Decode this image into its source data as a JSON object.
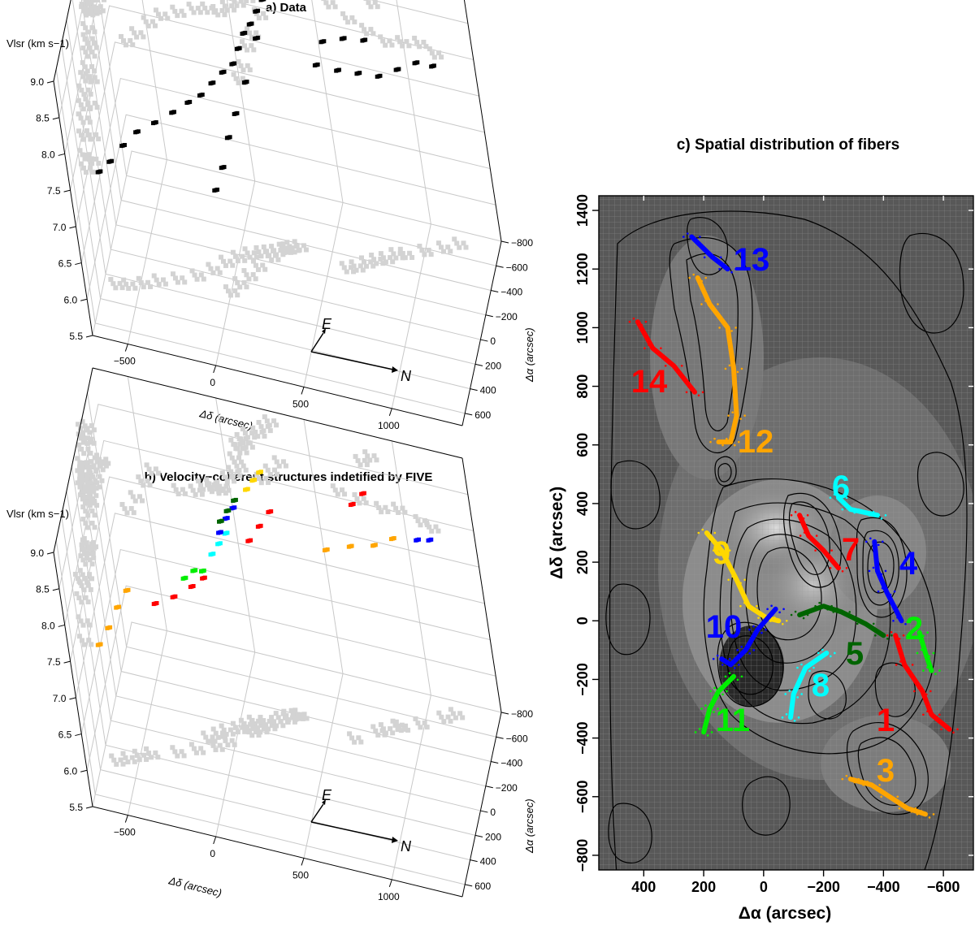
{
  "figure": {
    "panel_a_title": "a) Data",
    "panel_b_title": "b) Velocity−coherent structures indetified by FIVE",
    "panel_c_title": "c) Spatial distribution of fibers"
  },
  "chart_data": [
    {
      "type": "scatter",
      "title": "a) Data",
      "zlabel": "Vlsr (km s−1)",
      "xlabel": "Δδ (arcsec)",
      "ylabel": "Δα (arcsec)",
      "compass": {
        "E": "E",
        "N": "N"
      },
      "zlim": [
        5.5,
        9.0
      ],
      "xlim": [
        -700,
        1400
      ],
      "ylim": [
        -800,
        700
      ],
      "z_ticks": [
        "5.5",
        "6.0",
        "6.5",
        "7.0",
        "7.5",
        "8.0",
        "8.5",
        "9.0"
      ],
      "x_ticks": [
        "−500",
        "0",
        "500",
        "1000"
      ],
      "y_ticks": [
        "600",
        "400",
        "200",
        "0",
        "−200",
        "−400",
        "−600",
        "−800"
      ],
      "series": [
        {
          "color": "#000000",
          "values": [
            [
              -630,
              260,
              7.05
            ],
            [
              -560,
              240,
              7.2
            ],
            [
              -480,
              200,
              7.4
            ],
            [
              -400,
              150,
              7.55
            ],
            [
              -300,
              100,
              7.65
            ],
            [
              -200,
              40,
              7.75
            ],
            [
              -120,
              -40,
              7.8
            ],
            [
              -60,
              -120,
              7.8
            ],
            [
              0,
              -180,
              7.9
            ],
            [
              60,
              -230,
              8.0
            ],
            [
              120,
              -260,
              8.1
            ],
            [
              160,
              -280,
              8.3
            ],
            [
              200,
              -300,
              8.5
            ],
            [
              240,
              -330,
              8.6
            ],
            [
              280,
              -360,
              8.75
            ],
            [
              320,
              -380,
              8.9
            ],
            [
              260,
              -340,
              8.4
            ],
            [
              180,
              -250,
              7.9
            ],
            [
              120,
              -150,
              7.6
            ],
            [
              80,
              -60,
              7.4
            ],
            [
              40,
              20,
              7.1
            ],
            [
              0,
              100,
              6.9
            ],
            [
              600,
              -300,
              8.3
            ],
            [
              700,
              -380,
              8.15
            ],
            [
              800,
              -450,
              8.05
            ],
            [
              900,
              -520,
              7.95
            ],
            [
              1000,
              -580,
              8.0
            ],
            [
              1100,
              -640,
              8.05
            ],
            [
              1180,
              -700,
              7.95
            ],
            [
              650,
              -330,
              8.6
            ],
            [
              750,
              -420,
              8.55
            ],
            [
              850,
              -500,
              8.45
            ]
          ]
        }
      ],
      "projection_color": "#d3d3d3"
    },
    {
      "type": "scatter",
      "title": "b) Velocity−coherent structures indetified by FIVE",
      "zlabel": "Vlsr (km s−1)",
      "xlabel": "Δδ (arcsec)",
      "ylabel": "Δα (arcsec)",
      "compass": {
        "E": "E",
        "N": "N"
      },
      "zlim": [
        5.5,
        9.0
      ],
      "xlim": [
        -700,
        1400
      ],
      "ylim": [
        -800,
        700
      ],
      "z_ticks": [
        "5.5",
        "6.0",
        "6.5",
        "7.0",
        "7.5",
        "8.0",
        "8.5",
        "9.0"
      ],
      "x_ticks": [
        "−500",
        "0",
        "500",
        "1000"
      ],
      "y_ticks": [
        "600",
        "400",
        "200",
        "0",
        "−200",
        "−400",
        "−600",
        "−800"
      ],
      "series": [
        {
          "color": "#ffa500",
          "values": [
            [
              -620,
              300,
              7.1
            ],
            [
              -560,
              260,
              7.3
            ],
            [
              -500,
              220,
              7.55
            ],
            [
              -440,
              180,
              7.75
            ]
          ]
        },
        {
          "color": "#ff0000",
          "values": [
            [
              -300,
              120,
              7.55
            ],
            [
              -200,
              60,
              7.6
            ],
            [
              -100,
              0,
              7.7
            ],
            [
              -40,
              -60,
              7.75
            ]
          ]
        },
        {
          "color": "#00ee00",
          "values": [
            [
              -150,
              -50,
              7.7
            ],
            [
              -100,
              -100,
              7.75
            ],
            [
              -60,
              -140,
              7.7
            ]
          ]
        },
        {
          "color": "#00ffff",
          "values": [
            [
              0,
              -180,
              7.9
            ],
            [
              40,
              -220,
              8.0
            ],
            [
              80,
              -260,
              8.1
            ]
          ]
        },
        {
          "color": "#0000ff",
          "values": [
            [
              60,
              -200,
              8.2
            ],
            [
              100,
              -240,
              8.35
            ],
            [
              140,
              -280,
              8.45
            ]
          ]
        },
        {
          "color": "#006400",
          "values": [
            [
              80,
              -180,
              8.4
            ],
            [
              120,
              -220,
              8.5
            ],
            [
              160,
              -260,
              8.6
            ]
          ]
        },
        {
          "color": "#ffd700",
          "values": [
            [
              220,
              -340,
              8.65
            ],
            [
              260,
              -370,
              8.75
            ],
            [
              300,
              -390,
              8.85
            ]
          ]
        },
        {
          "color": "#ff0000",
          "values": [
            [
              200,
              -300,
              8.0
            ],
            [
              260,
              -350,
              8.15
            ],
            [
              320,
              -400,
              8.3
            ]
          ]
        },
        {
          "color": "#ffa500",
          "values": [
            [
              640,
              -320,
              8.1
            ],
            [
              760,
              -420,
              8.05
            ],
            [
              880,
              -500,
              8.0
            ],
            [
              980,
              -560,
              8.05
            ]
          ]
        },
        {
          "color": "#ff0000",
          "values": [
            [
              800,
              -450,
              8.6
            ],
            [
              860,
              -500,
              8.7
            ]
          ]
        },
        {
          "color": "#0000ff",
          "values": [
            [
              1100,
              -650,
              7.95
            ],
            [
              1160,
              -700,
              7.9
            ]
          ]
        }
      ],
      "projection_color": "#d3d3d3"
    },
    {
      "type": "line",
      "title": "c) Spatial distribution of fibers",
      "xlabel": "Δα (arcsec)",
      "ylabel": "Δδ (arcsec)",
      "xlim": [
        550,
        -700
      ],
      "ylim": [
        -850,
        1450
      ],
      "x_ticks": [
        400,
        200,
        0,
        -200,
        -400,
        -600
      ],
      "y_ticks": [
        -800,
        -600,
        -400,
        -200,
        0,
        200,
        400,
        600,
        800,
        1000,
        1200,
        1400
      ],
      "x_tick_labels": [
        "400",
        "200",
        "0",
        "−200",
        "−400",
        "−600"
      ],
      "y_tick_labels": [
        "−800",
        "−600",
        "−400",
        "−200",
        "0",
        "200",
        "400",
        "600",
        "800",
        "1000",
        "1200",
        "1400"
      ],
      "series": [
        {
          "label": "1",
          "color": "#ff0000",
          "values": [
            [
              -440,
              -50
            ],
            [
              -470,
              -150
            ],
            [
              -530,
              -240
            ],
            [
              -560,
              -320
            ],
            [
              -620,
              -370
            ]
          ]
        },
        {
          "label": "2",
          "color": "#00ee00",
          "values": [
            [
              -520,
              -40
            ],
            [
              -540,
              -110
            ],
            [
              -560,
              -170
            ]
          ]
        },
        {
          "label": "3",
          "color": "#ffa500",
          "values": [
            [
              -290,
              -540
            ],
            [
              -360,
              -560
            ],
            [
              -420,
              -600
            ],
            [
              -480,
              -640
            ],
            [
              -540,
              -660
            ]
          ]
        },
        {
          "label": "4",
          "color": "#0000ff",
          "values": [
            [
              -370,
              270
            ],
            [
              -380,
              170
            ],
            [
              -410,
              100
            ],
            [
              -460,
              0
            ]
          ]
        },
        {
          "label": "5",
          "color": "#006400",
          "values": [
            [
              -120,
              20
            ],
            [
              -200,
              50
            ],
            [
              -260,
              30
            ],
            [
              -340,
              -10
            ],
            [
              -400,
              -50
            ]
          ]
        },
        {
          "label": "6",
          "color": "#00ffff",
          "values": [
            [
              -250,
              420
            ],
            [
              -290,
              380
            ],
            [
              -380,
              360
            ]
          ]
        },
        {
          "label": "7",
          "color": "#ff0000",
          "values": [
            [
              -120,
              360
            ],
            [
              -150,
              290
            ],
            [
              -200,
              240
            ],
            [
              -250,
              180
            ]
          ]
        },
        {
          "label": "8",
          "color": "#00ffff",
          "values": [
            [
              -90,
              -330
            ],
            [
              -100,
              -250
            ],
            [
              -140,
              -160
            ],
            [
              -210,
              -110
            ]
          ]
        },
        {
          "label": "9",
          "color": "#ffd700",
          "values": [
            [
              190,
              300
            ],
            [
              140,
              240
            ],
            [
              90,
              140
            ],
            [
              50,
              50
            ],
            [
              -10,
              10
            ],
            [
              -50,
              0
            ]
          ]
        },
        {
          "label": "10",
          "color": "#0000ff",
          "values": [
            [
              140,
              -130
            ],
            [
              110,
              -150
            ],
            [
              60,
              -100
            ],
            [
              20,
              -30
            ],
            [
              -40,
              40
            ]
          ]
        },
        {
          "label": "11",
          "color": "#00ee00",
          "values": [
            [
              200,
              -380
            ],
            [
              180,
              -300
            ],
            [
              150,
              -240
            ],
            [
              100,
              -190
            ]
          ]
        },
        {
          "label": "12",
          "color": "#ffa500",
          "values": [
            [
              220,
              1170
            ],
            [
              180,
              1080
            ],
            [
              120,
              1000
            ],
            [
              100,
              860
            ],
            [
              90,
              700
            ],
            [
              110,
              610
            ],
            [
              150,
              610
            ]
          ]
        },
        {
          "label": "13",
          "color": "#0000ff",
          "values": [
            [
              240,
              1310
            ],
            [
              170,
              1240
            ],
            [
              120,
              1200
            ]
          ]
        },
        {
          "label": "14",
          "color": "#ff0000",
          "values": [
            [
              420,
              1020
            ],
            [
              370,
              930
            ],
            [
              300,
              870
            ],
            [
              230,
              780
            ]
          ]
        }
      ]
    }
  ]
}
